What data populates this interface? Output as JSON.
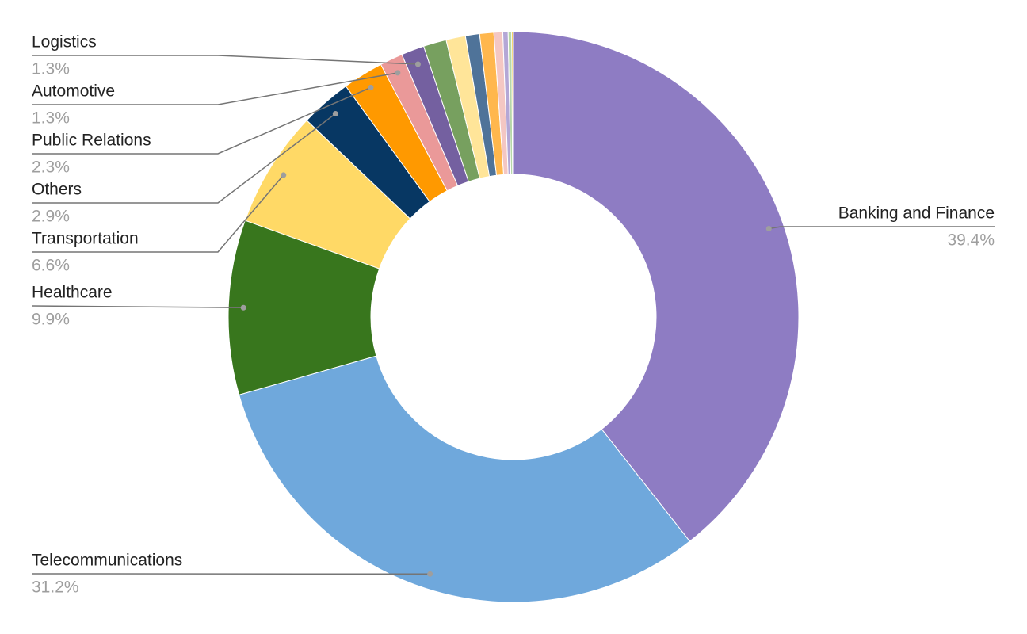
{
  "chart_data": {
    "type": "donut",
    "categories": [
      "Banking and Finance",
      "Telecommunications",
      "Healthcare",
      "Transportation",
      "Others",
      "Public Relations",
      "Automotive",
      "Logistics",
      null,
      null,
      null,
      null,
      null,
      null,
      null,
      null
    ],
    "values": [
      39.4,
      31.2,
      9.9,
      6.6,
      2.9,
      2.3,
      1.3,
      1.3,
      1.3,
      1.1,
      0.8,
      0.8,
      0.5,
      0.3,
      0.2,
      0.1
    ],
    "value_labels": [
      "39.4%",
      "31.2%",
      "9.9%",
      "6.6%",
      "2.9%",
      "2.3%",
      "1.3%",
      "1.3%",
      null,
      null,
      null,
      null,
      null,
      null,
      null,
      null
    ],
    "colors": [
      "#8e7cc3",
      "#6fa8dc",
      "#38761d",
      "#ffd966",
      "#073763",
      "#ff9900",
      "#ea9999",
      "#7460a0",
      "#77a05f",
      "#ffe599",
      "#4f7399",
      "#ffb74d",
      "#f4c7c3",
      "#b4a7d6",
      "#b6d7a8",
      "#f1c232"
    ]
  }
}
